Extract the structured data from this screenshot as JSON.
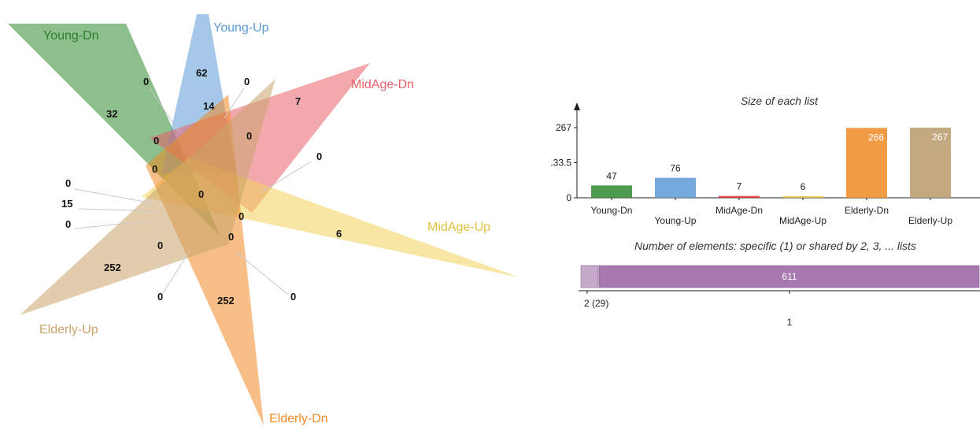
{
  "chart_data": [
    {
      "type": "venn",
      "sets": [
        {
          "name": "Young-Dn",
          "color": "#2e8b2e"
        },
        {
          "name": "Young-Up",
          "color": "#5b9bd5"
        },
        {
          "name": "MidAge-Dn",
          "color": "#e8606a"
        },
        {
          "name": "MidAge-Up",
          "color": "#f2d35a"
        },
        {
          "name": "Elderly-Dn",
          "color": "#f08a24"
        },
        {
          "name": "Elderly-Up",
          "color": "#c9a46b"
        }
      ],
      "region_counts": [
        "0",
        "62",
        "0",
        "32",
        "14",
        "7",
        "0",
        "0",
        "0",
        "0",
        "0",
        "15",
        "0",
        "0",
        "0",
        "6",
        "0",
        "252",
        "0",
        "252",
        "0",
        "0"
      ]
    },
    {
      "type": "bar",
      "title": "Size of each list",
      "categories": [
        "Young-Dn",
        "Young-Up",
        "MidAge-Dn",
        "MidAge-Up",
        "Elderly-Dn",
        "Elderly-Up"
      ],
      "values": [
        47,
        76,
        7,
        6,
        266,
        267
      ],
      "colors": [
        "#2e8b2e",
        "#5b9bd5",
        "#e03030",
        "#e8c33a",
        "#f08a24",
        "#b99a6a"
      ],
      "yticks": [
        "0",
        "133.5",
        "267"
      ],
      "ylim": [
        0,
        267
      ]
    },
    {
      "type": "bar",
      "title": "Number of elements: specific (1) or shared by 2, 3, ... lists",
      "categories": [
        "2 (29)",
        "1"
      ],
      "values": [
        29,
        611
      ],
      "value_labels": [
        "",
        "611"
      ],
      "colors": [
        "#c7a9cc",
        "#a878b0"
      ]
    }
  ]
}
